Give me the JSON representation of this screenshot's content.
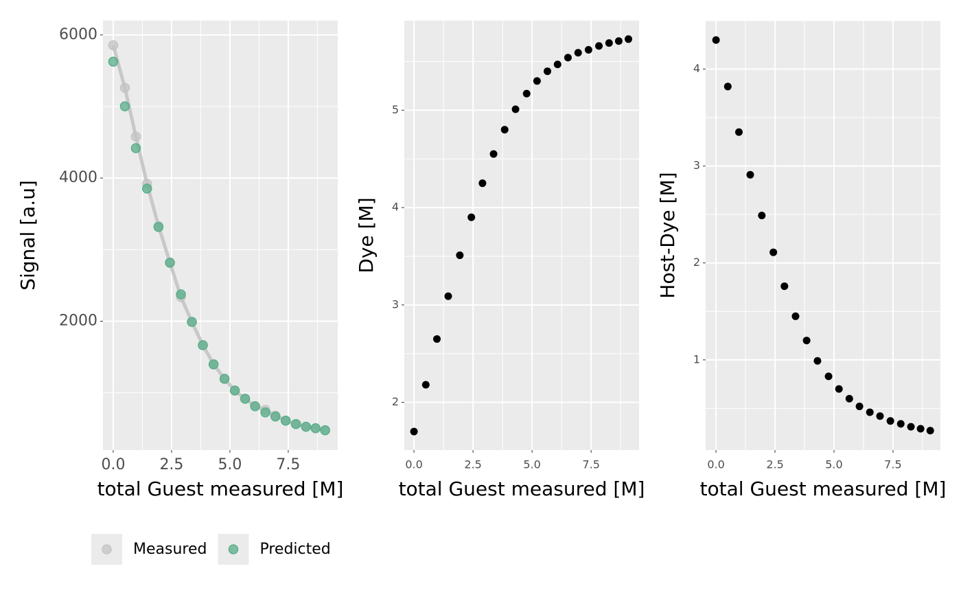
{
  "chart_data": [
    {
      "type": "scatter",
      "xlabel": "total Guest measured [M]",
      "ylabel": "Signal [a.u]",
      "x": [
        0,
        0.5,
        0.97,
        1.45,
        1.94,
        2.43,
        2.9,
        3.37,
        3.84,
        4.3,
        4.77,
        5.21,
        5.65,
        6.08,
        6.52,
        6.95,
        7.39,
        7.83,
        8.26,
        8.67,
        9.08
      ],
      "series": [
        {
          "name": "Measured",
          "color": "#c4c4c4",
          "line": true,
          "values": [
            5856,
            5261,
            4580,
            3920,
            3330,
            2820,
            2340,
            1990,
            1665,
            1400,
            1195,
            1030,
            917,
            812,
            760,
            680,
            611,
            563,
            525,
            505,
            476
          ]
        },
        {
          "name": "Predicted",
          "color": "#5aae8a",
          "values": [
            5626,
            5003,
            4418,
            3853,
            3316,
            2817,
            2376,
            1990,
            1665,
            1397,
            1195,
            1032,
            917,
            812,
            726,
            668,
            611,
            563,
            525,
            505,
            476
          ]
        }
      ],
      "xlim": [
        -0.44,
        9.62
      ],
      "ylim": [
        200,
        6200
      ],
      "xticks": [
        {
          "value": 0,
          "label": "0.0"
        },
        {
          "value": 2.5,
          "label": "2.5"
        },
        {
          "value": 5,
          "label": "5.0"
        },
        {
          "value": 7.5,
          "label": "7.5"
        }
      ],
      "yticks": [
        2000,
        4000,
        6000
      ],
      "grid": true,
      "legend": "bottom"
    },
    {
      "type": "scatter",
      "xlabel": "total Guest measured [M]",
      "ylabel": "Dye [M]",
      "x": [
        0,
        0.5,
        0.97,
        1.45,
        1.94,
        2.43,
        2.9,
        3.37,
        3.84,
        4.3,
        4.77,
        5.21,
        5.65,
        6.08,
        6.52,
        6.95,
        7.39,
        7.83,
        8.26,
        8.67,
        9.08
      ],
      "series": [
        {
          "color": "#000000",
          "values": [
            1.7,
            2.18,
            2.65,
            3.09,
            3.51,
            3.9,
            4.25,
            4.55,
            4.8,
            5.01,
            5.17,
            5.3,
            5.4,
            5.47,
            5.54,
            5.59,
            5.62,
            5.66,
            5.69,
            5.71,
            5.73
          ]
        }
      ],
      "xlim": [
        -0.41,
        9.53
      ],
      "ylim": [
        1.51,
        5.92
      ],
      "xticks": [
        {
          "value": 0,
          "label": "0.0"
        },
        {
          "value": 2.5,
          "label": "2.5"
        },
        {
          "value": 5,
          "label": "5.0"
        },
        {
          "value": 7.5,
          "label": "7.5"
        }
      ],
      "yticks": [
        2,
        3,
        4,
        5
      ],
      "grid": true
    },
    {
      "type": "scatter",
      "xlabel": "total Guest measured [M]",
      "ylabel": "Host-Dye [M]",
      "x": [
        0,
        0.5,
        0.97,
        1.45,
        1.94,
        2.43,
        2.9,
        3.37,
        3.84,
        4.3,
        4.77,
        5.21,
        5.65,
        6.08,
        6.52,
        6.95,
        7.39,
        7.83,
        8.26,
        8.67,
        9.08
      ],
      "series": [
        {
          "color": "#000000",
          "values": [
            4.3,
            3.82,
            3.35,
            2.91,
            2.49,
            2.11,
            1.76,
            1.45,
            1.2,
            0.99,
            0.83,
            0.7,
            0.6,
            0.52,
            0.46,
            0.42,
            0.37,
            0.34,
            0.31,
            0.29,
            0.27
          ]
        }
      ],
      "xlim": [
        -0.44,
        9.51
      ],
      "ylim": [
        0.07,
        4.5
      ],
      "xticks": [
        {
          "value": 0,
          "label": "0.0"
        },
        {
          "value": 2.5,
          "label": "2.5"
        },
        {
          "value": 5,
          "label": "5.0"
        },
        {
          "value": 7.5,
          "label": "7.5"
        }
      ],
      "yticks": [
        1,
        2,
        3,
        4
      ],
      "grid": true
    }
  ]
}
